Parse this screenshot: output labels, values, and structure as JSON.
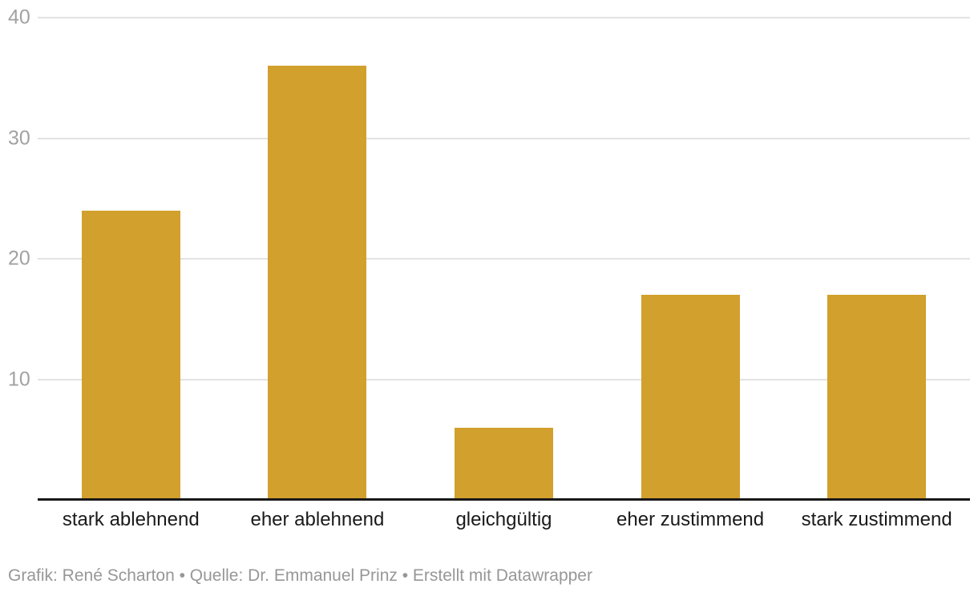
{
  "chart_data": {
    "type": "bar",
    "title": "",
    "xlabel": "",
    "ylabel": "",
    "categories": [
      "stark ablehnend",
      "eher ablehnend",
      "gleichgültig",
      "eher zustimmend",
      "stark zustimmend"
    ],
    "values": [
      24,
      36,
      6,
      17,
      17
    ],
    "ylim": [
      0,
      40
    ],
    "yticks": [
      10,
      20,
      30,
      40
    ],
    "grid": true,
    "legend": "none",
    "colors": {
      "bar": "#D2A02C",
      "gridline": "#e3e3e3",
      "axis_line": "#18181a",
      "y_tick_label": "#a2a2a2",
      "x_label": "#1a1a1a",
      "footer": "#979797"
    }
  },
  "footer": {
    "text": "Grafik: René Scharton • Quelle: Dr. Emmanuel Prinz • Erstellt mit Datawrapper"
  }
}
